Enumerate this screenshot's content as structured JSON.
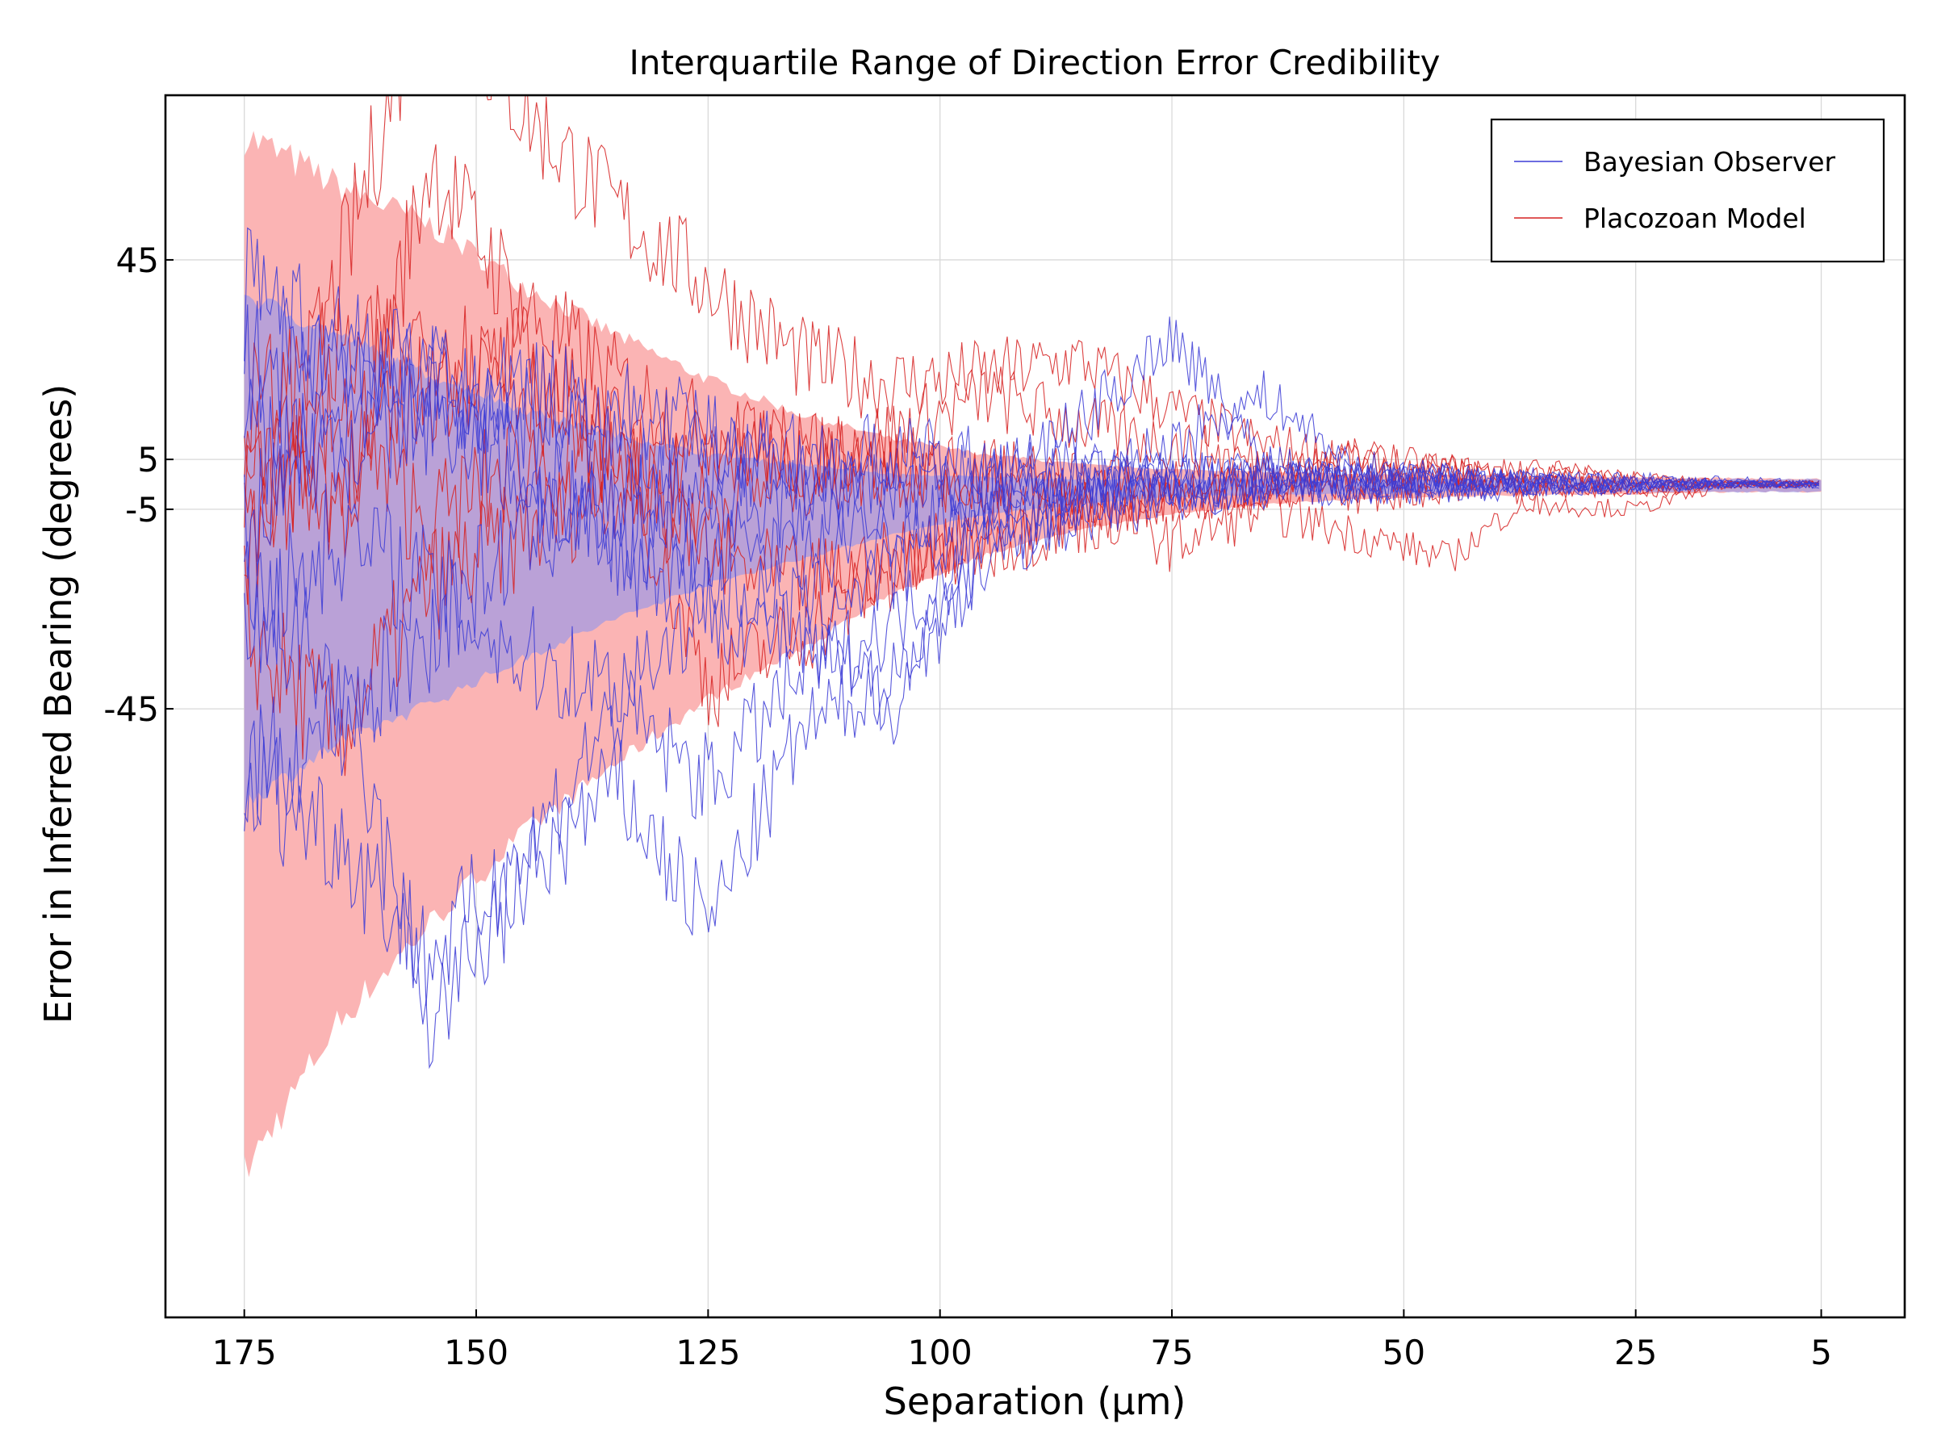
{
  "chart_data": {
    "type": "line",
    "title": "Interquartile Range of Direction Error Credibility",
    "xlabel": "Separation (µm)",
    "ylabel": "Error in Inferred Bearing (degrees)",
    "x_reversed": true,
    "xlim": [
      183.5,
      -4
    ],
    "ylim": [
      -167,
      78
    ],
    "xticks": [
      175,
      150,
      125,
      100,
      75,
      50,
      25,
      5
    ],
    "xtick_labels": [
      "175",
      "150",
      "125",
      "100",
      "75",
      "50",
      "25",
      "5"
    ],
    "yticks": [
      45,
      5,
      -5,
      -45
    ],
    "ytick_labels": [
      "45",
      "5",
      "-5",
      "-45"
    ],
    "grid": true,
    "legend": {
      "position": "top-right",
      "entries": [
        {
          "label": "Bayesian Observer",
          "color": "#3b3bd6"
        },
        {
          "label": "Placozoan Model",
          "color": "#d62020"
        }
      ]
    },
    "colors": {
      "bayesian": "#3b3bd6",
      "placozoan": "#d62020",
      "bayesian_band": "#a89be0",
      "placozoan_band": "#fbb4b4"
    },
    "bands": [
      {
        "name": "Placozoan Model",
        "x": [
          175,
          165,
          155,
          145,
          135,
          125,
          115,
          105,
          95,
          85,
          75,
          65,
          55,
          45,
          35,
          25,
          15,
          5
        ],
        "upper": [
          70,
          60,
          52,
          40,
          30,
          21,
          14,
          9,
          6,
          4,
          3,
          2.5,
          2,
          2,
          1.5,
          1.5,
          1.2,
          1
        ],
        "lower": [
          -138,
          -108,
          -88,
          -70,
          -56,
          -43,
          -33,
          -22,
          -14,
          -9,
          -6,
          -4,
          -3,
          -2.5,
          -2,
          -2,
          -1.5,
          -1.5
        ]
      },
      {
        "name": "Bayesian Observer",
        "x": [
          175,
          165,
          155,
          145,
          135,
          125,
          115,
          105,
          95,
          85,
          75,
          65,
          55,
          45,
          35,
          25,
          15,
          5
        ],
        "upper": [
          38,
          30,
          22,
          15,
          10,
          6,
          4,
          2,
          1.5,
          1,
          1,
          1,
          1,
          1,
          1,
          1,
          1,
          1
        ],
        "lower": [
          -64,
          -52,
          -44,
          -35,
          -27,
          -20,
          -15,
          -10,
          -6,
          -4,
          -2.5,
          -2,
          -2,
          -1.5,
          -1.5,
          -1.5,
          -1.5,
          -1.5
        ]
      }
    ],
    "series": [
      {
        "name": "Bayesian Observer",
        "group": "bayesian",
        "x": [
          175,
          165,
          155,
          145,
          135,
          125,
          115,
          105,
          95,
          85,
          75,
          65,
          55,
          45,
          35,
          25,
          15,
          5
        ],
        "values": [
          38,
          28,
          20,
          14,
          8,
          4,
          1,
          0,
          2,
          1,
          0,
          0,
          0,
          0,
          0,
          0,
          0,
          0
        ]
      },
      {
        "name": "Bayesian Observer",
        "group": "bayesian",
        "x": [
          175,
          165,
          155,
          145,
          135,
          125,
          115,
          105,
          95,
          85,
          75,
          65,
          55,
          45,
          35,
          25,
          15,
          5
        ],
        "values": [
          -58,
          -70,
          -95,
          -75,
          -45,
          -60,
          -38,
          -28,
          -8,
          -3,
          0,
          1,
          1,
          0,
          0,
          -1,
          0,
          0
        ]
      },
      {
        "name": "Bayesian Observer",
        "group": "bayesian",
        "x": [
          175,
          165,
          155,
          145,
          135,
          125,
          115,
          105,
          95,
          85,
          75,
          65,
          55,
          45,
          35,
          25,
          15,
          5
        ],
        "values": [
          -20,
          -40,
          -108,
          -80,
          -60,
          -88,
          -50,
          -38,
          -15,
          -6,
          -2,
          0,
          1,
          1,
          0,
          0,
          0,
          0
        ]
      },
      {
        "name": "Bayesian Observer",
        "group": "bayesian",
        "x": [
          175,
          165,
          155,
          145,
          135,
          125,
          115,
          105,
          95,
          85,
          75,
          65,
          55,
          45,
          35,
          25,
          15,
          5
        ],
        "values": [
          10,
          5,
          18,
          0,
          -15,
          -20,
          -25,
          -18,
          -6,
          -2,
          8,
          18,
          3,
          1,
          0,
          1,
          0,
          0
        ]
      },
      {
        "name": "Bayesian Observer",
        "group": "bayesian",
        "x": [
          175,
          165,
          155,
          145,
          135,
          125,
          115,
          105,
          95,
          85,
          75,
          65,
          55,
          45,
          35,
          25,
          15,
          5
        ],
        "values": [
          -30,
          -10,
          -20,
          -35,
          -40,
          -25,
          -32,
          -44,
          -12,
          -4,
          -1,
          0,
          0,
          1,
          0,
          0,
          1,
          0
        ]
      },
      {
        "name": "Bayesian Observer",
        "group": "bayesian",
        "x": [
          175,
          165,
          155,
          145,
          135,
          125,
          115,
          105,
          95,
          85,
          75,
          65,
          55,
          45,
          35,
          25,
          15,
          5
        ],
        "values": [
          -60,
          -48,
          -30,
          -10,
          -5,
          -2,
          -4,
          -3,
          -1,
          0,
          2,
          1,
          0,
          -1,
          0,
          0,
          0,
          0
        ]
      },
      {
        "name": "Bayesian Observer",
        "group": "bayesian",
        "x": [
          175,
          165,
          155,
          145,
          135,
          125,
          115,
          105,
          95,
          85,
          75,
          65,
          55,
          45,
          35,
          25,
          15,
          5
        ],
        "values": [
          22,
          30,
          10,
          20,
          15,
          10,
          5,
          6,
          4,
          2,
          1,
          0,
          1,
          0,
          1,
          0,
          0,
          0
        ]
      },
      {
        "name": "Bayesian Observer",
        "group": "bayesian",
        "x": [
          175,
          165,
          155,
          145,
          135,
          125,
          115,
          105,
          95,
          85,
          75,
          65,
          55,
          45,
          35,
          25,
          15,
          5
        ],
        "values": [
          -10,
          15,
          25,
          5,
          -10,
          -12,
          -15,
          -8,
          -3,
          12,
          30,
          5,
          2,
          1,
          0,
          0,
          0,
          0
        ]
      },
      {
        "name": "Placozoan Model",
        "group": "placozoan",
        "x": [
          175,
          165,
          155,
          145,
          135,
          125,
          115,
          105,
          95,
          85,
          75,
          65,
          55,
          45,
          35,
          25,
          15,
          5
        ],
        "values": [
          -20,
          40,
          105,
          75,
          55,
          40,
          25,
          20,
          22,
          25,
          15,
          8,
          5,
          3,
          2,
          1,
          0,
          0
        ]
      },
      {
        "name": "Placozoan Model",
        "group": "placozoan",
        "x": [
          175,
          165,
          155,
          145,
          135,
          125,
          115,
          105,
          95,
          85,
          75,
          65,
          55,
          45,
          35,
          25,
          15,
          5
        ],
        "values": [
          5,
          -10,
          65,
          35,
          20,
          10,
          5,
          10,
          18,
          12,
          8,
          4,
          3,
          2,
          0,
          -1,
          0,
          0
        ]
      },
      {
        "name": "Placozoan Model",
        "group": "placozoan",
        "x": [
          175,
          165,
          155,
          145,
          135,
          125,
          115,
          105,
          95,
          85,
          75,
          65,
          55,
          45,
          35,
          25,
          15,
          5
        ],
        "values": [
          -30,
          -50,
          -20,
          -10,
          0,
          -5,
          2,
          3,
          1,
          -2,
          -12,
          -5,
          -10,
          -15,
          0,
          -2,
          0,
          0
        ]
      },
      {
        "name": "Placozoan Model",
        "group": "placozoan",
        "x": [
          175,
          165,
          155,
          145,
          135,
          125,
          115,
          105,
          95,
          85,
          75,
          65,
          55,
          45,
          35,
          25,
          15,
          5
        ],
        "values": [
          10,
          0,
          20,
          25,
          10,
          -40,
          -30,
          -18,
          -12,
          -8,
          -4,
          2,
          6,
          3,
          -4,
          -5,
          0,
          0
        ]
      },
      {
        "name": "Placozoan Model",
        "group": "placozoan",
        "x": [
          175,
          165,
          155,
          145,
          135,
          125,
          115,
          105,
          95,
          85,
          75,
          65,
          55,
          45,
          35,
          25,
          15,
          5
        ],
        "values": [
          -5,
          12,
          -8,
          5,
          2,
          8,
          6,
          4,
          2,
          1,
          0,
          -1,
          -2,
          -1,
          1,
          0,
          0,
          0
        ]
      },
      {
        "name": "Placozoan Model",
        "group": "placozoan",
        "x": [
          175,
          165,
          155,
          145,
          135,
          125,
          115,
          105,
          95,
          85,
          75,
          65,
          55,
          45,
          35,
          25,
          15,
          5
        ],
        "values": [
          15,
          25,
          30,
          20,
          5,
          -15,
          -20,
          -15,
          -8,
          -4,
          -2,
          -1,
          0,
          2,
          3,
          1,
          0,
          0
        ]
      }
    ]
  }
}
